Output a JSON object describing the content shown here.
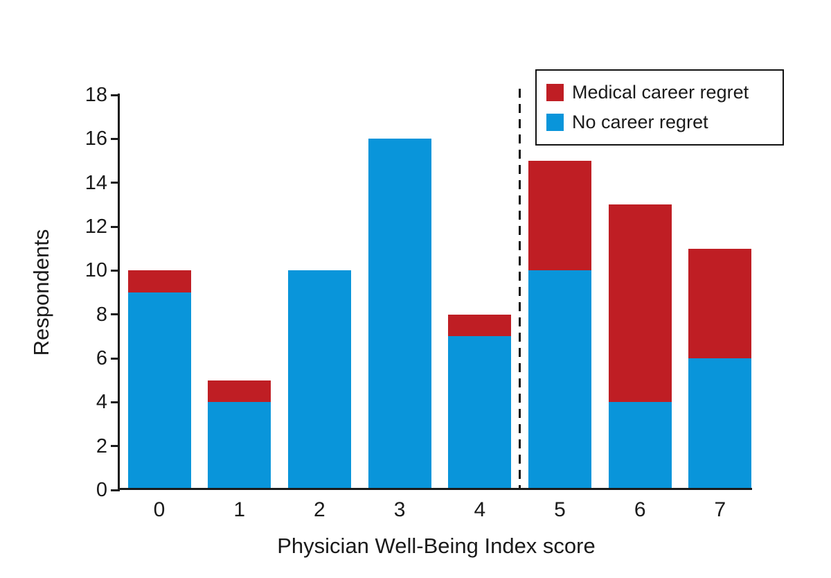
{
  "chart_data": {
    "type": "bar",
    "stacked": true,
    "title": "",
    "categories": [
      "0",
      "1",
      "2",
      "3",
      "4",
      "5",
      "6",
      "7"
    ],
    "series": [
      {
        "name": "No career regret",
        "color": "#0995DA",
        "values": [
          9,
          4,
          10,
          16,
          7,
          10,
          4,
          6
        ]
      },
      {
        "name": "Medical career regret",
        "color": "#BF1E24",
        "values": [
          1,
          1,
          0,
          0,
          1,
          5,
          9,
          5
        ]
      }
    ],
    "totals": [
      10,
      5,
      10,
      16,
      8,
      15,
      13,
      11
    ],
    "xlabel": "Physician Well-Being Index score",
    "ylabel": "Respondents",
    "ylim": [
      0,
      18
    ],
    "yticks": [
      0,
      2,
      4,
      6,
      8,
      10,
      12,
      14,
      16,
      18
    ],
    "grid": false,
    "legend_position": "top-right",
    "legend_order": [
      "Medical career regret",
      "No career regret"
    ],
    "divider_between_categories": [
      "4",
      "5"
    ]
  },
  "colors": {
    "axis": "#1a1a1a",
    "background": "#ffffff",
    "regret_red": "#BF1E24",
    "no_regret_blue": "#0995DA"
  }
}
